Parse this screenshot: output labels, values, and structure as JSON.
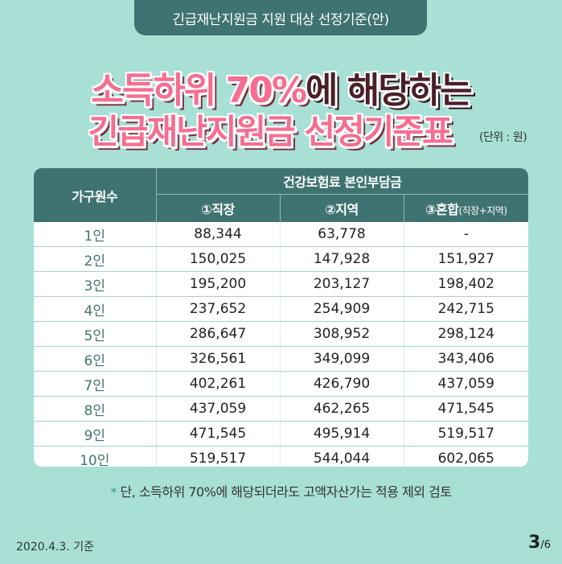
{
  "header": {
    "tab_title": "긴급재난지원금 지원 대상 선정기준(안)"
  },
  "headline": {
    "line1_pink": "소득하위 70%",
    "line1_dark": "에 해당하는",
    "line2": "긴급재난지원금 선정기준표",
    "unit": "(단위 : 원)"
  },
  "table": {
    "row_header": "가구원수",
    "group_header": "건강보험료 본인부담금",
    "col1": "①직장",
    "col2": "②지역",
    "col3_main": "③혼합",
    "col3_sub": "(직장+지역)",
    "rows": [
      [
        "1인",
        "88,344",
        "63,778",
        "-"
      ],
      [
        "2인",
        "150,025",
        "147,928",
        "151,927"
      ],
      [
        "3인",
        "195,200",
        "203,127",
        "198,402"
      ],
      [
        "4인",
        "237,652",
        "254,909",
        "242,715"
      ],
      [
        "5인",
        "286,647",
        "308,952",
        "298,124"
      ],
      [
        "6인",
        "326,561",
        "349,099",
        "343,406"
      ],
      [
        "7인",
        "402,261",
        "426,790",
        "437,059"
      ],
      [
        "8인",
        "437,059",
        "462,265",
        "471,545"
      ],
      [
        "9인",
        "471,545",
        "495,914",
        "519,517"
      ],
      [
        "10인",
        "519,517",
        "544,044",
        "602,065"
      ]
    ]
  },
  "footnote": {
    "star": "*",
    "text": " 단, 소득하위 70%에 해당되더라도 고액자산가는 적용 제외 검토"
  },
  "footer": {
    "date": "2020.4.3. 기준",
    "page_current": "3",
    "page_total": "/6"
  }
}
